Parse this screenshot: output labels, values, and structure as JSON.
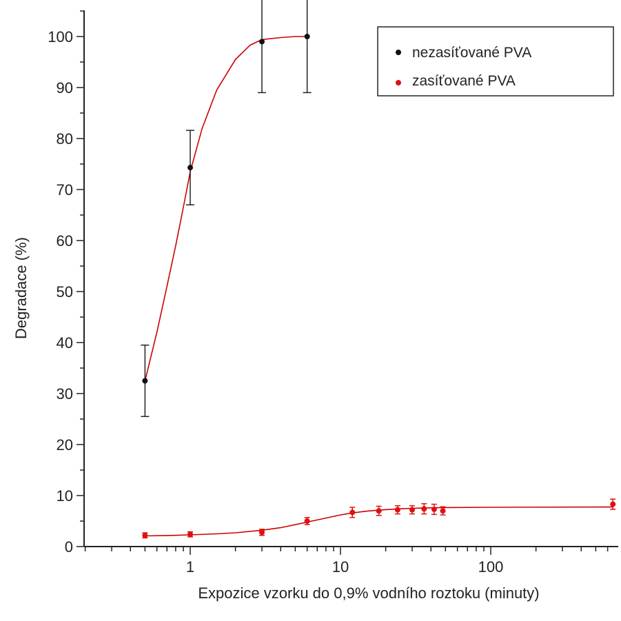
{
  "chart_data": {
    "type": "scatter",
    "xlabel": "Expozice vzorku do 0,9% vodního roztoku (minuty)",
    "ylabel": "Degradace (%)",
    "xscale": "log",
    "xlim": [
      0.2,
      650
    ],
    "ylim": [
      0,
      105
    ],
    "x_ticks": [
      1,
      10,
      100
    ],
    "x_tick_labels": [
      "1",
      "10",
      "100"
    ],
    "y_ticks": [
      0,
      10,
      20,
      30,
      40,
      50,
      60,
      70,
      80,
      90,
      100
    ],
    "y_tick_labels": [
      "0",
      "10",
      "20",
      "30",
      "40",
      "50",
      "60",
      "70",
      "80",
      "90",
      "100"
    ],
    "grid": false,
    "legend_position": "top-right",
    "series": [
      {
        "name": "nezasíťované PVA",
        "marker_color": "#111111",
        "fit_color": "#cc0000",
        "x": [
          0.5,
          1,
          3,
          6
        ],
        "y": [
          32.5,
          74.3,
          99.0,
          100.0
        ],
        "error": [
          7.0,
          7.3,
          10.0,
          11.0
        ],
        "fit": [
          [
            0.5,
            32.5
          ],
          [
            0.6,
            42
          ],
          [
            0.7,
            51
          ],
          [
            0.8,
            59
          ],
          [
            0.9,
            66.5
          ],
          [
            1,
            73.5
          ],
          [
            1.2,
            82
          ],
          [
            1.5,
            89.5
          ],
          [
            2,
            95.5
          ],
          [
            2.5,
            98.3
          ],
          [
            3,
            99.4
          ],
          [
            4,
            99.8
          ],
          [
            5,
            100
          ],
          [
            6,
            100
          ]
        ]
      },
      {
        "name": "zasíťované PVA",
        "marker_color": "#dd1111",
        "fit_color": "#cc0000",
        "x": [
          0.5,
          1,
          3,
          6,
          12,
          18,
          24,
          30,
          36,
          42,
          48,
          650
        ],
        "y": [
          2.2,
          2.4,
          2.8,
          5.0,
          6.7,
          7.0,
          7.2,
          7.2,
          7.4,
          7.3,
          7.0,
          8.3
        ],
        "error": [
          0.5,
          0.5,
          0.6,
          0.7,
          1.0,
          0.9,
          0.8,
          0.8,
          1.0,
          1.0,
          0.8,
          1.0
        ],
        "fit": [
          [
            0.5,
            2.1
          ],
          [
            0.7,
            2.15
          ],
          [
            1,
            2.3
          ],
          [
            1.5,
            2.5
          ],
          [
            2,
            2.7
          ],
          [
            3,
            3.2
          ],
          [
            4,
            3.7
          ],
          [
            5,
            4.3
          ],
          [
            6,
            4.8
          ],
          [
            8,
            5.6
          ],
          [
            10,
            6.2
          ],
          [
            12,
            6.6
          ],
          [
            15,
            6.95
          ],
          [
            20,
            7.25
          ],
          [
            25,
            7.4
          ],
          [
            30,
            7.5
          ],
          [
            40,
            7.6
          ],
          [
            50,
            7.65
          ],
          [
            100,
            7.7
          ],
          [
            650,
            7.75
          ]
        ]
      }
    ]
  }
}
